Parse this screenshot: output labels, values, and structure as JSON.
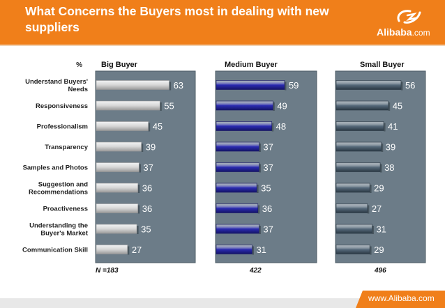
{
  "header": {
    "title": "What Concerns the Buyers most in dealing with new suppliers",
    "logo_text": "Alibaba",
    "logo_suffix": ".com"
  },
  "footer": {
    "url": "www.Alibaba.com"
  },
  "colors": {
    "accent": "#f07f1a",
    "panel": "#6c7c88",
    "big_bar": "#d6d6d6",
    "medium_bar": "#2a2ab0",
    "small_bar": "#56697a"
  },
  "chart_data": {
    "type": "bar",
    "orientation": "horizontal",
    "unit_label": "%",
    "categories": [
      "Understand Buyers' Needs",
      "Responsiveness",
      "Professionalism",
      "Transparency",
      "Samples and Photos",
      "Suggestion and Recommendations",
      "Proactiveness",
      "Understanding the Buyer's Market",
      "Communication Skill"
    ],
    "category_lines": [
      [
        "Understand Buyers'",
        "Needs"
      ],
      [
        "Responsiveness"
      ],
      [
        "Professionalism"
      ],
      [
        "Transparency"
      ],
      [
        "Samples and Photos"
      ],
      [
        "Suggestion and",
        "Recommendations"
      ],
      [
        "Proactiveness"
      ],
      [
        "Understanding the",
        "Buyer's Market"
      ],
      [
        "Communication Skill"
      ]
    ],
    "series": [
      {
        "name": "Big Buyer",
        "n_label": "N =183",
        "values": [
          63,
          55,
          45,
          39,
          37,
          36,
          36,
          35,
          27
        ]
      },
      {
        "name": "Medium Buyer",
        "n_label": "422",
        "values": [
          59,
          49,
          48,
          37,
          37,
          35,
          36,
          37,
          31
        ]
      },
      {
        "name": "Small Buyer",
        "n_label": "496",
        "values": [
          56,
          45,
          41,
          39,
          38,
          29,
          27,
          31,
          29
        ]
      }
    ],
    "xlim": [
      0,
      100
    ]
  }
}
